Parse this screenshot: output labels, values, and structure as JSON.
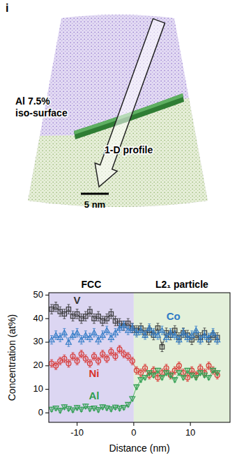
{
  "diagram": {
    "panel_label": "i",
    "iso_surface_label": [
      "Al 7.5%",
      "iso-surface"
    ],
    "profile_label": "1-D profile",
    "scale_bar": "5 nm"
  },
  "chart_data": {
    "type": "line",
    "xlabel": "Distance (nm)",
    "ylabel": "Concentration (at%)",
    "xlim": [
      -15,
      17
    ],
    "xticks": [
      -10,
      0,
      10
    ],
    "ylim": [
      -4,
      51
    ],
    "yticks": [
      0,
      10,
      20,
      30,
      40,
      50
    ],
    "regions": [
      {
        "label": "FCC",
        "from": -15,
        "to": 0,
        "color": "#dcd6f2"
      },
      {
        "label": "L2₁ particle",
        "from": 0,
        "to": 17,
        "color": "#e3f0da"
      }
    ],
    "x": [
      -14.5,
      -13.75,
      -13,
      -12.25,
      -11.5,
      -10.75,
      -10,
      -9.25,
      -8.5,
      -7.75,
      -7,
      -6.25,
      -5.5,
      -4.75,
      -4,
      -3.25,
      -2.5,
      -1.75,
      -1,
      -0.25,
      0.5,
      1.25,
      2,
      2.75,
      3.5,
      4.25,
      5,
      5.75,
      6.5,
      7.25,
      8,
      8.75,
      9.5,
      10.25,
      11,
      11.75,
      12.5,
      13.25,
      14,
      14.75
    ],
    "series": [
      {
        "name": "V",
        "color": "#333333",
        "marker": "square",
        "error": 2,
        "label_at": [
          -10,
          47.5
        ],
        "values": [
          44,
          45,
          43,
          42,
          44,
          41,
          42,
          40,
          41,
          43,
          40,
          41,
          39,
          40,
          42,
          39,
          38,
          37,
          38,
          36,
          35,
          36,
          34,
          35,
          33,
          36,
          28,
          34,
          33,
          35,
          32,
          34,
          33,
          31,
          33,
          32,
          34,
          31,
          33,
          32
        ]
      },
      {
        "name": "Co",
        "color": "#2f7ac6",
        "marker": "triangle-up",
        "error": 1.8,
        "label_at": [
          7,
          40.5
        ],
        "values": [
          31,
          33,
          32,
          34,
          30,
          33,
          34,
          31,
          33,
          32,
          34,
          31,
          33,
          35,
          32,
          34,
          36,
          37,
          35,
          36,
          34,
          35,
          33,
          36,
          34,
          33,
          35,
          32,
          34,
          33,
          31,
          34,
          32,
          33,
          35,
          31,
          33,
          32,
          34,
          31
        ]
      },
      {
        "name": "Ni",
        "color": "#d8312e",
        "marker": "circle",
        "error": 1.6,
        "label_at": [
          -7,
          16.5
        ],
        "values": [
          21,
          20,
          22,
          23,
          21,
          24,
          22,
          25,
          23,
          21,
          24,
          22,
          25,
          23,
          26,
          24,
          27,
          25,
          24,
          22,
          18,
          17,
          19,
          16,
          18,
          15,
          17,
          19,
          16,
          18,
          20,
          17,
          15,
          18,
          16,
          19,
          17,
          20,
          18,
          16
        ]
      },
      {
        "name": "Al",
        "color": "#2e9e50",
        "marker": "triangle-down",
        "error": 0.9,
        "label_at": [
          -7,
          7
        ],
        "values": [
          1.5,
          2,
          1,
          2.5,
          1.8,
          1.2,
          2.2,
          1.5,
          2.8,
          1.7,
          2,
          1.3,
          2.5,
          2.1,
          1.6,
          2.4,
          1.9,
          2.3,
          3.5,
          6,
          11,
          14,
          15,
          17,
          16,
          18,
          15,
          17,
          16,
          14,
          17,
          15,
          18,
          16,
          15,
          17,
          16,
          15,
          18,
          17
        ]
      }
    ]
  }
}
